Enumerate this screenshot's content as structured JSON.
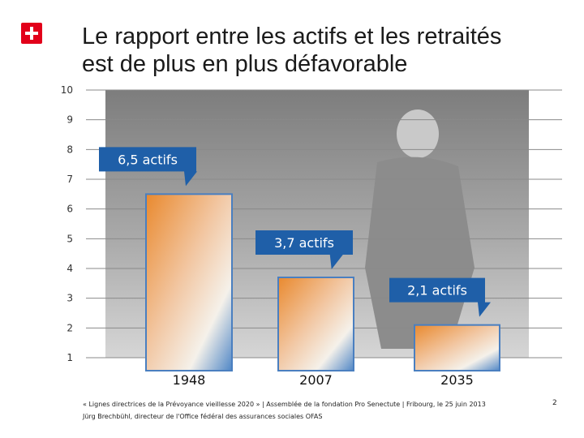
{
  "header": {
    "logo": "swiss-cross-icon",
    "title_line1": "Le rapport entre les actifs et les retraités",
    "title_line2": "est de plus en plus défavorable"
  },
  "chart_data": {
    "type": "bar",
    "categories": [
      "1948",
      "2007",
      "2035"
    ],
    "values": [
      6.5,
      3.7,
      2.1
    ],
    "data_labels": [
      "6,5 actifs",
      "3,7 actifs",
      "2,1 actifs"
    ],
    "ylim": [
      1,
      10
    ],
    "yticks": [
      "1",
      "2",
      "3",
      "4",
      "5",
      "6",
      "7",
      "8",
      "9",
      "10"
    ],
    "grid": true,
    "title": "Le rapport entre les actifs et les retraités est de plus en plus défavorable",
    "xlabel": "",
    "ylabel": ""
  },
  "colors": {
    "callout": "#1f5fa8",
    "bar_border": "#4a7fc0",
    "gridline": "#8a8a8a",
    "swiss_red": "#e2001a",
    "photo_bg": "#9a9a9a"
  },
  "footer": {
    "line1": "« Lignes directrices de la Prévoyance vieillesse 2020 » | Assemblée de la fondation Pro Senectute | Fribourg, le 25 juin 2013",
    "line2": "Jürg Brechbühl, directeur de l'Office fédéral des assurances sociales OFAS",
    "page_number": "2"
  }
}
